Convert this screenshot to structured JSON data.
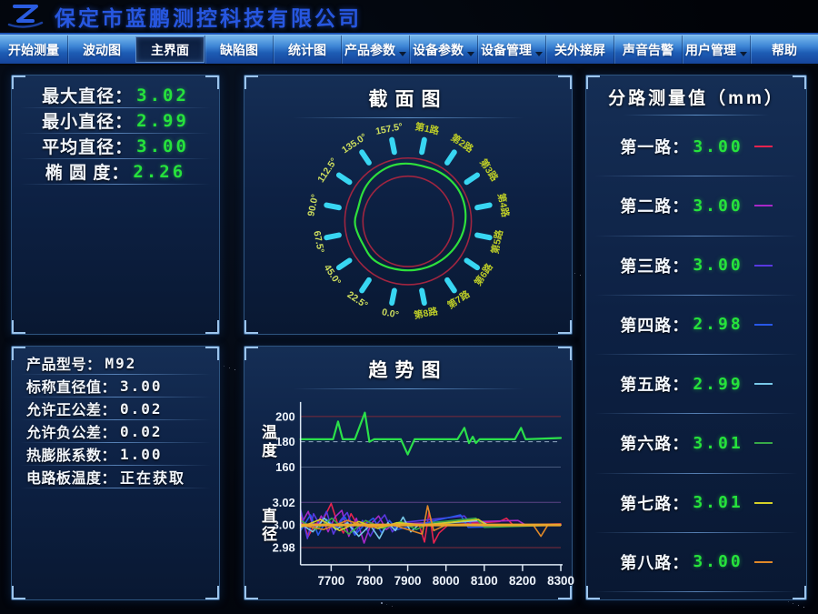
{
  "window": {
    "title": "保定市蓝鹏测控科技有限公司"
  },
  "menu": {
    "items": [
      {
        "label": "开始测量",
        "dropdown": false,
        "active": false
      },
      {
        "label": "波动图",
        "dropdown": false,
        "active": false
      },
      {
        "label": "主界面",
        "dropdown": false,
        "active": true
      },
      {
        "label": "缺陷图",
        "dropdown": false,
        "active": false
      },
      {
        "label": "统计图",
        "dropdown": false,
        "active": false
      },
      {
        "label": "产品参数",
        "dropdown": true,
        "active": false
      },
      {
        "label": "设备参数",
        "dropdown": true,
        "active": false
      },
      {
        "label": "设备管理",
        "dropdown": true,
        "active": false
      },
      {
        "label": "关外接屏",
        "dropdown": false,
        "active": false
      },
      {
        "label": "声音告警",
        "dropdown": false,
        "active": false
      },
      {
        "label": "用户管理",
        "dropdown": true,
        "active": false
      },
      {
        "label": "帮助",
        "dropdown": false,
        "active": false
      }
    ]
  },
  "panels": {
    "measurements": {
      "rows": [
        {
          "label": "最大直径：",
          "value": "3.02"
        },
        {
          "label": "最小直径：",
          "value": "2.99"
        },
        {
          "label": "平均直径：",
          "value": "3.00"
        },
        {
          "label": "椭 圆 度：",
          "value": "2.26"
        }
      ]
    },
    "product": {
      "rows": [
        {
          "label": "产品型号：",
          "value": "M92"
        },
        {
          "label": "标称直径值：",
          "value": "3.00"
        },
        {
          "label": "允许正公差：",
          "value": "0.02"
        },
        {
          "label": "允许负公差：",
          "value": "0.02"
        },
        {
          "label": "热膨胀系数：",
          "value": "1.00"
        },
        {
          "label": "电路板温度：",
          "value": "正在获取"
        }
      ]
    },
    "section": {
      "title": "截面图"
    },
    "trend": {
      "title": "趋势图"
    },
    "channels": {
      "title": "分路测量值（mm）",
      "rows": [
        {
          "label": "第一路：",
          "value": "3.00",
          "color": "#e8234e"
        },
        {
          "label": "第二路：",
          "value": "3.00",
          "color": "#a828c8"
        },
        {
          "label": "第三路：",
          "value": "3.00",
          "color": "#5838e0"
        },
        {
          "label": "第四路：",
          "value": "2.98",
          "color": "#2858e8"
        },
        {
          "label": "第五路：",
          "value": "2.99",
          "color": "#78c8e8"
        },
        {
          "label": "第六路：",
          "value": "3.01",
          "color": "#38a848"
        },
        {
          "label": "第七路：",
          "value": "3.01",
          "color": "#d4d028"
        },
        {
          "label": "第八路：",
          "value": "3.00",
          "color": "#e08828"
        }
      ]
    }
  },
  "chart_data": [
    {
      "type": "polar-profile",
      "title": "截面图",
      "angle_labels": [
        "157.5°",
        "135.0°",
        "112.5°",
        "90.0°",
        "67.5°",
        "45.0°",
        "22.5°",
        "0.0°"
      ],
      "channel_labels": [
        "第1路",
        "第2路",
        "第3路",
        "第4路",
        "第5路",
        "第6路",
        "第7路",
        "第8路"
      ],
      "tolerance_circles": [
        2.98,
        3.02
      ],
      "profile_radii": [
        3.009,
        3.007,
        3.01,
        3.012,
        3.013,
        3.011,
        3.008,
        3.004,
        2.999,
        2.995,
        2.992,
        2.99,
        2.989,
        2.99,
        2.993,
        2.996,
        2.992,
        2.995,
        3.0,
        2.994,
        2.999,
        3.004,
        3.007,
        3.01
      ],
      "colors": {
        "profile": "#2ee03c",
        "tolerance": "#a02540",
        "tick": "#38d6f2",
        "angle_label": "#cede5e",
        "channel_label": "#bccc28"
      }
    },
    {
      "type": "line",
      "title": "趋势图（温度）",
      "ylabel": "温度",
      "yticks": [
        "200",
        "180",
        "160"
      ],
      "ylim": [
        155,
        205
      ],
      "xlim": [
        7620,
        8300
      ],
      "dashed_line": {
        "y": 180,
        "color": "#93a9c4"
      },
      "gridlines": [
        {
          "y": 200,
          "color": "#7e2a3a"
        },
        {
          "y": 160,
          "color": "#46597c"
        }
      ],
      "series": [
        {
          "name": "温度",
          "color": "#2be04a",
          "points": [
            [
              7620,
              182
            ],
            [
              7705,
              182
            ],
            [
              7718,
              196
            ],
            [
              7730,
              182
            ],
            [
              7762,
              182
            ],
            [
              7788,
              203
            ],
            [
              7800,
              180
            ],
            [
              7812,
              182
            ],
            [
              7882,
              182
            ],
            [
              7900,
              170
            ],
            [
              7918,
              182
            ],
            [
              8030,
              182
            ],
            [
              8048,
              191
            ],
            [
              8060,
              179
            ],
            [
              8070,
              184
            ],
            [
              8078,
              179
            ],
            [
              8088,
              182
            ],
            [
              8180,
              182
            ],
            [
              8196,
              191
            ],
            [
              8208,
              182
            ],
            [
              8300,
              183
            ]
          ]
        }
      ]
    },
    {
      "type": "line",
      "title": "趋势图（直径）",
      "ylabel": "直径",
      "yticks": [
        "3.02",
        "3.00",
        "2.98"
      ],
      "ylim": [
        2.975,
        3.025
      ],
      "xlim": [
        7620,
        8300
      ],
      "xticks": [
        7700,
        7800,
        7900,
        8000,
        8100,
        8200,
        8300
      ],
      "nominal_line": {
        "y": 3.0,
        "color": "#eaa62c"
      },
      "gridlines": [
        {
          "y": 3.02,
          "color": "#5c4386"
        },
        {
          "y": 2.98,
          "color": "#7e2a3a"
        }
      ],
      "series": [
        {
          "name": "第一路",
          "color": "#e8234e",
          "points": [
            [
              7620,
              3.008
            ],
            [
              7640,
              2.99
            ],
            [
              7658,
              3.001
            ],
            [
              7678,
              3.004
            ],
            [
              7700,
              3.019
            ],
            [
              7716,
              3.002
            ],
            [
              7732,
              2.993
            ],
            [
              7752,
              3.01
            ],
            [
              7772,
              2.998
            ],
            [
              7795,
              3.003
            ],
            [
              7815,
              3.0
            ],
            [
              7930,
              3.0
            ],
            [
              7944,
              2.985
            ],
            [
              7956,
              3.012
            ],
            [
              7968,
              2.984
            ],
            [
              7982,
              2.993
            ],
            [
              8005,
              3.0
            ],
            [
              8140,
              3.003
            ],
            [
              8158,
              3.006
            ],
            [
              8175,
              3.0
            ],
            [
              8300,
              3.001
            ]
          ]
        },
        {
          "name": "第二路",
          "color": "#a828c8",
          "points": [
            [
              7620,
              3.0
            ],
            [
              7640,
              3.012
            ],
            [
              7656,
              2.996
            ],
            [
              7674,
              3.008
            ],
            [
              7692,
              2.994
            ],
            [
              7710,
              3.007
            ],
            [
              7728,
              3.013
            ],
            [
              7746,
              2.99
            ],
            [
              7766,
              3.006
            ],
            [
              7786,
              2.984
            ],
            [
              7804,
              3.001
            ],
            [
              7824,
              3.008
            ],
            [
              7844,
              2.996
            ],
            [
              7864,
              3.001
            ],
            [
              8188,
              3.004
            ],
            [
              8208,
              3.0
            ],
            [
              8300,
              3.0
            ]
          ]
        },
        {
          "name": "第三路",
          "color": "#5838e0",
          "points": [
            [
              7620,
              3.014
            ],
            [
              7638,
              2.988
            ],
            [
              7654,
              3.01
            ],
            [
              7670,
              3.0
            ],
            [
              7688,
              3.012
            ],
            [
              7706,
              2.992
            ],
            [
              7724,
              3.004
            ],
            [
              7742,
              3.011
            ],
            [
              7762,
              2.992
            ],
            [
              7782,
              3.004
            ],
            [
              7802,
              2.99
            ],
            [
              7820,
              3.001
            ],
            [
              7840,
              3.009
            ],
            [
              7860,
              2.994
            ],
            [
              7880,
              3.002
            ],
            [
              8048,
              3.008
            ],
            [
              8068,
              3.0
            ],
            [
              8300,
              3.0
            ]
          ]
        },
        {
          "name": "第四路",
          "color": "#2858e8",
          "points": [
            [
              7620,
              2.995
            ],
            [
              7646,
              3.009
            ],
            [
              7666,
              2.991
            ],
            [
              7688,
              3.005
            ],
            [
              7712,
              2.998
            ],
            [
              7736,
              3.007
            ],
            [
              7762,
              2.991
            ],
            [
              7786,
              3.0
            ],
            [
              7810,
              3.006
            ],
            [
              7832,
              2.993
            ],
            [
              7852,
              3.004
            ],
            [
              7872,
              2.996
            ],
            [
              8038,
              3.009
            ],
            [
              8058,
              2.998
            ],
            [
              8300,
              3.0
            ]
          ]
        },
        {
          "name": "第五路",
          "color": "#78c8e8",
          "points": [
            [
              7620,
              3.001
            ],
            [
              7652,
              2.994
            ],
            [
              7682,
              3.006
            ],
            [
              7712,
              2.996
            ],
            [
              7742,
              3.002
            ],
            [
              7772,
              2.99
            ],
            [
              7802,
              3.0
            ],
            [
              7826,
              2.988
            ],
            [
              7848,
              3.002
            ],
            [
              7868,
              2.995
            ],
            [
              7888,
              3.007
            ],
            [
              7908,
              2.994
            ],
            [
              7928,
              3.0
            ],
            [
              8088,
              3.004
            ],
            [
              8110,
              3.0
            ],
            [
              8300,
              3.0
            ]
          ]
        },
        {
          "name": "第六路",
          "color": "#38a848",
          "points": [
            [
              7620,
              3.004
            ],
            [
              7660,
              2.996
            ],
            [
              7702,
              3.006
            ],
            [
              7746,
              2.992
            ],
            [
              7790,
              3.004
            ],
            [
              7836,
              2.997
            ],
            [
              7882,
              3.003
            ],
            [
              7922,
              2.996
            ],
            [
              7962,
              3.002
            ],
            [
              8078,
              3.006
            ],
            [
              8100,
              2.998
            ],
            [
              8300,
              3.0
            ]
          ]
        },
        {
          "name": "第七路",
          "color": "#d4d028",
          "points": [
            [
              7620,
              2.998
            ],
            [
              7672,
              3.005
            ],
            [
              7722,
              2.995
            ],
            [
              7772,
              3.003
            ],
            [
              7822,
              2.997
            ],
            [
              7872,
              3.002
            ],
            [
              7946,
              3.0
            ],
            [
              8085,
              3.005
            ],
            [
              8105,
              3.0
            ],
            [
              8300,
              3.0
            ]
          ]
        },
        {
          "name": "第八路",
          "color": "#e08828",
          "points": [
            [
              7620,
              3.0
            ],
            [
              7680,
              2.996
            ],
            [
              7742,
              3.004
            ],
            [
              7802,
              2.998
            ],
            [
              7862,
              3.0
            ],
            [
              7938,
              2.992
            ],
            [
              7952,
              3.017
            ],
            [
              7968,
              2.995
            ],
            [
              8000,
              3.0
            ],
            [
              8228,
              3.0
            ],
            [
              8248,
              2.99
            ],
            [
              8266,
              3.0
            ],
            [
              8300,
              3.0
            ]
          ]
        }
      ]
    }
  ]
}
